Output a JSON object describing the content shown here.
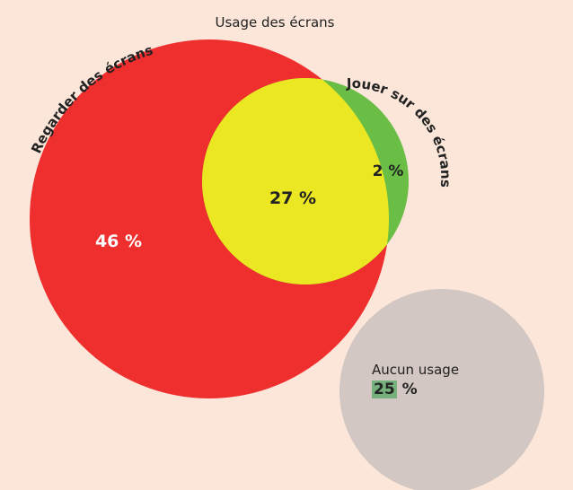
{
  "diagram": {
    "title": "Usage des écrans",
    "sets": [
      {
        "label": "Regarder des écrans",
        "color": "#ef2e2e",
        "only_value": "46 %"
      },
      {
        "label": "Jouer sur des écrans",
        "color": "#6abd45",
        "only_value": "2 %"
      }
    ],
    "overlap": {
      "color": "#ebe722",
      "value": "27 %"
    },
    "none": {
      "label": "Aucun usage",
      "color": "#d2c7c2",
      "value_number": "25",
      "value_unit": "%"
    }
  }
}
